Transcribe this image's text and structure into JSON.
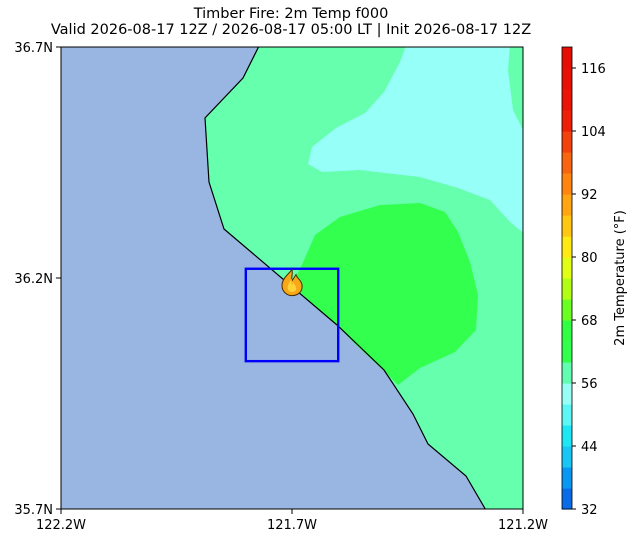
{
  "title": "Timber Fire: 2m Temp f000",
  "subtitle": "Valid 2026-08-17 12Z / 2026-08-17 05:00 LT | Init 2026-08-17 12Z",
  "map": {
    "lon_range": [
      -122.2,
      -121.2
    ],
    "lat_range": [
      35.7,
      36.7
    ],
    "x_ticks": [
      {
        "value": -122.2,
        "label": "122.2W"
      },
      {
        "value": -121.7,
        "label": "121.7W"
      },
      {
        "value": -121.2,
        "label": "121.2W"
      }
    ],
    "y_ticks": [
      {
        "value": 36.7,
        "label": "36.7N"
      },
      {
        "value": 36.2,
        "label": "36.2N"
      },
      {
        "value": 35.7,
        "label": "35.7N"
      }
    ],
    "ocean_color": "#98b6e1",
    "fire_icon": "flame-icon",
    "fire_location": {
      "lon": -121.7,
      "lat": 36.19
    },
    "box": {
      "lon_min": -121.8,
      "lon_max": -121.6,
      "lat_min": 36.02,
      "lat_max": 36.22,
      "color": "#0000ff"
    }
  },
  "colorbar": {
    "label": "2m Temperature (°F)",
    "min": 32,
    "max": 120,
    "step": 4,
    "ticks": [
      "32",
      "44",
      "56",
      "68",
      "80",
      "92",
      "104",
      "116"
    ],
    "colors": [
      "#0a6be6",
      "#0a97f2",
      "#18c7f5",
      "#1de7f4",
      "#5cf6f4",
      "#97fff6",
      "#62fdb0",
      "#33ff4e",
      "#32ff44",
      "#6cff22",
      "#b1ff15",
      "#e1ff14",
      "#ffea13",
      "#ffc712",
      "#ffa512",
      "#ff8511",
      "#f86510",
      "#f3420e",
      "#ee2008",
      "#ea1506",
      "#e71005",
      "#e50e04"
    ]
  }
}
